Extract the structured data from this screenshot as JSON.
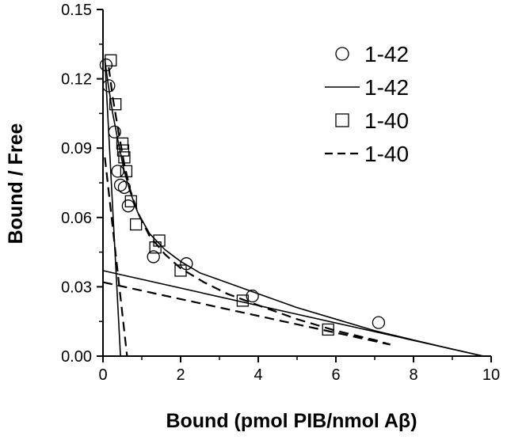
{
  "chart_data": {
    "type": "scatter",
    "xlabel": "Bound (pmol PIB/nmol Aβ)",
    "ylabel": "Bound / Free",
    "xlim": [
      0,
      10
    ],
    "ylim": [
      0,
      0.15
    ],
    "xticks": [
      "0",
      "2",
      "4",
      "6",
      "8",
      "10"
    ],
    "yticks": [
      "0.00",
      "0.03",
      "0.06",
      "0.09",
      "0.12",
      "0.15"
    ],
    "grid": false,
    "legend_position": "top-right",
    "series": [
      {
        "name": "1-42",
        "kind": "points",
        "marker": "circle",
        "points": [
          [
            0.08,
            0.126
          ],
          [
            0.15,
            0.117
          ],
          [
            0.3,
            0.097
          ],
          [
            0.38,
            0.08
          ],
          [
            0.45,
            0.074
          ],
          [
            0.55,
            0.073
          ],
          [
            0.65,
            0.065
          ],
          [
            1.3,
            0.043
          ],
          [
            2.15,
            0.04
          ],
          [
            3.85,
            0.026
          ],
          [
            7.1,
            0.0145
          ]
        ]
      },
      {
        "name": "1-42",
        "kind": "line",
        "dash": "solid",
        "segments": [
          [
            [
              0.05,
              0.128
            ],
            [
              0.13,
              0.118
            ],
            [
              0.25,
              0.105
            ],
            [
              0.4,
              0.092
            ],
            [
              0.55,
              0.08
            ],
            [
              0.7,
              0.071
            ],
            [
              0.9,
              0.062
            ],
            [
              1.2,
              0.053
            ],
            [
              1.6,
              0.046
            ],
            [
              2.0,
              0.041
            ],
            [
              2.5,
              0.036
            ],
            [
              3.0,
              0.033
            ],
            [
              4.0,
              0.027
            ],
            [
              5.0,
              0.021
            ],
            [
              6.0,
              0.016
            ],
            [
              7.0,
              0.011
            ],
            [
              8.0,
              0.007
            ],
            [
              9.0,
              0.003
            ],
            [
              9.8,
              0.0
            ]
          ],
          [
            [
              0.0,
              0.037
            ],
            [
              9.8,
              0.0
            ]
          ],
          [
            [
              0.05,
              0.128
            ],
            [
              0.45,
              0.0
            ]
          ]
        ]
      },
      {
        "name": "1-40",
        "kind": "points",
        "marker": "square",
        "points": [
          [
            0.2,
            0.128
          ],
          [
            0.32,
            0.109
          ],
          [
            0.5,
            0.092
          ],
          [
            0.52,
            0.089
          ],
          [
            0.55,
            0.086
          ],
          [
            0.6,
            0.08
          ],
          [
            0.72,
            0.067
          ],
          [
            0.85,
            0.057
          ],
          [
            1.35,
            0.047
          ],
          [
            1.45,
            0.05
          ],
          [
            2.0,
            0.037
          ],
          [
            3.6,
            0.024
          ],
          [
            5.8,
            0.0115
          ]
        ]
      },
      {
        "name": "1-40",
        "kind": "line",
        "dash": "dashed",
        "segments": [
          [
            [
              0.15,
              0.125
            ],
            [
              0.25,
              0.112
            ],
            [
              0.4,
              0.097
            ],
            [
              0.55,
              0.083
            ],
            [
              0.7,
              0.072
            ],
            [
              0.9,
              0.062
            ],
            [
              1.2,
              0.052
            ],
            [
              1.6,
              0.044
            ],
            [
              2.0,
              0.038
            ],
            [
              2.6,
              0.032
            ],
            [
              3.2,
              0.027
            ],
            [
              4.0,
              0.022
            ],
            [
              5.0,
              0.016
            ],
            [
              6.0,
              0.011
            ],
            [
              7.0,
              0.007
            ],
            [
              7.4,
              0.005
            ]
          ],
          [
            [
              0.0,
              0.032
            ],
            [
              7.4,
              0.005
            ]
          ],
          [
            [
              0.05,
              0.086
            ],
            [
              0.62,
              0.0
            ]
          ]
        ]
      }
    ]
  }
}
